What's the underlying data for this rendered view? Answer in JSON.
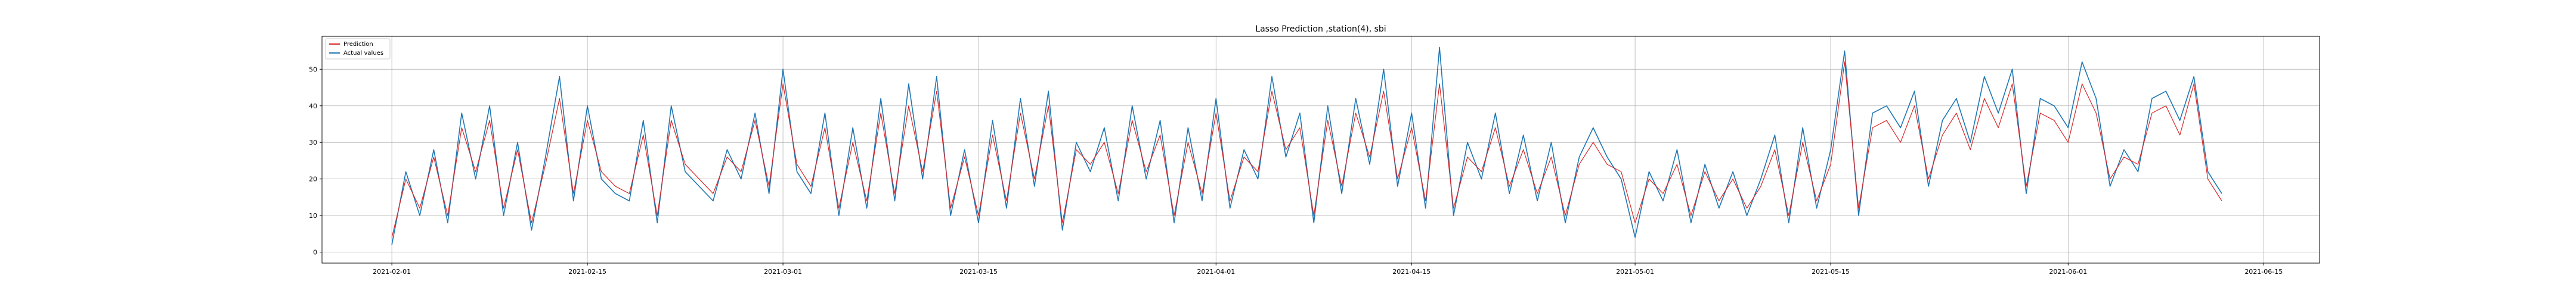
{
  "chart_data": {
    "type": "line",
    "title": "Lasso Prediction ,station(4), sbi",
    "xlabel": "",
    "ylabel": "",
    "x_range": [
      "2021-01-27",
      "2021-06-19"
    ],
    "x_ticks": [
      "2021-02-01",
      "2021-02-15",
      "2021-03-01",
      "2021-03-15",
      "2021-04-01",
      "2021-04-15",
      "2021-05-01",
      "2021-05-15",
      "2021-06-01",
      "2021-06-15"
    ],
    "ylim": [
      -3,
      59
    ],
    "y_ticks": [
      0,
      10,
      20,
      30,
      40,
      50
    ],
    "grid": true,
    "legend_position": "top-left",
    "series": [
      {
        "name": "Prediction",
        "color": "#d62728",
        "x": [
          "2021-02-01",
          "2021-02-02",
          "2021-02-03",
          "2021-02-04",
          "2021-02-05",
          "2021-02-06",
          "2021-02-07",
          "2021-02-08",
          "2021-02-09",
          "2021-02-10",
          "2021-02-11",
          "2021-02-12",
          "2021-02-13",
          "2021-02-14",
          "2021-02-15",
          "2021-02-16",
          "2021-02-17",
          "2021-02-18",
          "2021-02-19",
          "2021-02-20",
          "2021-02-21",
          "2021-02-22",
          "2021-02-23",
          "2021-02-24",
          "2021-02-25",
          "2021-02-26",
          "2021-02-27",
          "2021-02-28",
          "2021-03-01",
          "2021-03-02",
          "2021-03-03",
          "2021-03-04",
          "2021-03-05",
          "2021-03-06",
          "2021-03-07",
          "2021-03-08",
          "2021-03-09",
          "2021-03-10",
          "2021-03-11",
          "2021-03-12",
          "2021-03-13",
          "2021-03-14",
          "2021-03-15",
          "2021-03-16",
          "2021-03-17",
          "2021-03-18",
          "2021-03-19",
          "2021-03-20",
          "2021-03-21",
          "2021-03-22",
          "2021-03-23",
          "2021-03-24",
          "2021-03-25",
          "2021-03-26",
          "2021-03-27",
          "2021-03-28",
          "2021-03-29",
          "2021-03-30",
          "2021-03-31",
          "2021-04-01",
          "2021-04-02",
          "2021-04-03",
          "2021-04-04",
          "2021-04-05",
          "2021-04-06",
          "2021-04-07",
          "2021-04-08",
          "2021-04-09",
          "2021-04-10",
          "2021-04-11",
          "2021-04-12",
          "2021-04-13",
          "2021-04-14",
          "2021-04-15",
          "2021-04-16",
          "2021-04-17",
          "2021-04-18",
          "2021-04-19",
          "2021-04-20",
          "2021-04-21",
          "2021-04-22",
          "2021-04-23",
          "2021-04-24",
          "2021-04-25",
          "2021-04-26",
          "2021-04-27",
          "2021-04-28",
          "2021-04-29",
          "2021-04-30",
          "2021-05-01",
          "2021-05-02",
          "2021-05-03",
          "2021-05-04",
          "2021-05-05",
          "2021-05-06",
          "2021-05-07",
          "2021-05-08",
          "2021-05-09",
          "2021-05-10",
          "2021-05-11",
          "2021-05-12",
          "2021-05-13",
          "2021-05-14",
          "2021-05-15",
          "2021-05-16",
          "2021-05-17",
          "2021-05-18",
          "2021-05-19",
          "2021-05-20",
          "2021-05-21",
          "2021-05-22",
          "2021-05-23",
          "2021-05-24",
          "2021-05-25",
          "2021-05-26",
          "2021-05-27",
          "2021-05-28",
          "2021-05-29",
          "2021-05-30",
          "2021-05-31",
          "2021-06-01",
          "2021-06-02",
          "2021-06-03",
          "2021-06-04",
          "2021-06-05",
          "2021-06-06",
          "2021-06-07",
          "2021-06-08",
          "2021-06-09",
          "2021-06-10",
          "2021-06-11",
          "2021-06-12"
        ],
        "values": [
          4,
          20,
          12,
          26,
          10,
          34,
          22,
          36,
          12,
          28,
          8,
          24,
          42,
          16,
          36,
          22,
          18,
          16,
          32,
          10,
          36,
          24,
          20,
          16,
          26,
          22,
          36,
          18,
          46,
          24,
          18,
          34,
          12,
          30,
          14,
          38,
          16,
          40,
          22,
          44,
          12,
          26,
          10,
          32,
          14,
          38,
          20,
          40,
          8,
          28,
          24,
          30,
          16,
          36,
          22,
          32,
          10,
          30,
          16,
          38,
          14,
          26,
          22,
          44,
          28,
          34,
          10,
          36,
          18,
          38,
          26,
          44,
          20,
          34,
          14,
          46,
          12,
          26,
          22,
          34,
          18,
          28,
          16,
          26,
          10,
          24,
          30,
          24,
          22,
          8,
          20,
          16,
          24,
          10,
          22,
          14,
          20,
          12,
          18,
          28,
          10,
          30,
          14,
          24,
          52,
          12,
          34,
          36,
          30,
          40,
          20,
          32,
          38,
          28,
          42,
          34,
          46,
          18,
          38,
          36,
          30,
          46,
          38,
          20,
          26,
          24,
          38,
          40,
          32,
          46,
          20,
          14
        ]
      },
      {
        "name": "Actual values",
        "color": "#1f77b4",
        "x": [
          "2021-02-01",
          "2021-02-02",
          "2021-02-03",
          "2021-02-04",
          "2021-02-05",
          "2021-02-06",
          "2021-02-07",
          "2021-02-08",
          "2021-02-09",
          "2021-02-10",
          "2021-02-11",
          "2021-02-12",
          "2021-02-13",
          "2021-02-14",
          "2021-02-15",
          "2021-02-16",
          "2021-02-17",
          "2021-02-18",
          "2021-02-19",
          "2021-02-20",
          "2021-02-21",
          "2021-02-22",
          "2021-02-23",
          "2021-02-24",
          "2021-02-25",
          "2021-02-26",
          "2021-02-27",
          "2021-02-28",
          "2021-03-01",
          "2021-03-02",
          "2021-03-03",
          "2021-03-04",
          "2021-03-05",
          "2021-03-06",
          "2021-03-07",
          "2021-03-08",
          "2021-03-09",
          "2021-03-10",
          "2021-03-11",
          "2021-03-12",
          "2021-03-13",
          "2021-03-14",
          "2021-03-15",
          "2021-03-16",
          "2021-03-17",
          "2021-03-18",
          "2021-03-19",
          "2021-03-20",
          "2021-03-21",
          "2021-03-22",
          "2021-03-23",
          "2021-03-24",
          "2021-03-25",
          "2021-03-26",
          "2021-03-27",
          "2021-03-28",
          "2021-03-29",
          "2021-03-30",
          "2021-03-31",
          "2021-04-01",
          "2021-04-02",
          "2021-04-03",
          "2021-04-04",
          "2021-04-05",
          "2021-04-06",
          "2021-04-07",
          "2021-04-08",
          "2021-04-09",
          "2021-04-10",
          "2021-04-11",
          "2021-04-12",
          "2021-04-13",
          "2021-04-14",
          "2021-04-15",
          "2021-04-16",
          "2021-04-17",
          "2021-04-18",
          "2021-04-19",
          "2021-04-20",
          "2021-04-21",
          "2021-04-22",
          "2021-04-23",
          "2021-04-24",
          "2021-04-25",
          "2021-04-26",
          "2021-04-27",
          "2021-04-28",
          "2021-04-29",
          "2021-04-30",
          "2021-05-01",
          "2021-05-02",
          "2021-05-03",
          "2021-05-04",
          "2021-05-05",
          "2021-05-06",
          "2021-05-07",
          "2021-05-08",
          "2021-05-09",
          "2021-05-10",
          "2021-05-11",
          "2021-05-12",
          "2021-05-13",
          "2021-05-14",
          "2021-05-15",
          "2021-05-16",
          "2021-05-17",
          "2021-05-18",
          "2021-05-19",
          "2021-05-20",
          "2021-05-21",
          "2021-05-22",
          "2021-05-23",
          "2021-05-24",
          "2021-05-25",
          "2021-05-26",
          "2021-05-27",
          "2021-05-28",
          "2021-05-29",
          "2021-05-30",
          "2021-05-31",
          "2021-06-01",
          "2021-06-02",
          "2021-06-03",
          "2021-06-04",
          "2021-06-05",
          "2021-06-06",
          "2021-06-07",
          "2021-06-08",
          "2021-06-09",
          "2021-06-10",
          "2021-06-11",
          "2021-06-12"
        ],
        "values": [
          2,
          22,
          10,
          28,
          8,
          38,
          20,
          40,
          10,
          30,
          6,
          26,
          48,
          14,
          40,
          20,
          16,
          14,
          36,
          8,
          40,
          22,
          18,
          14,
          28,
          20,
          38,
          16,
          50,
          22,
          16,
          38,
          10,
          34,
          12,
          42,
          14,
          46,
          20,
          48,
          10,
          28,
          8,
          36,
          12,
          42,
          18,
          44,
          6,
          30,
          22,
          34,
          14,
          40,
          20,
          36,
          8,
          34,
          14,
          42,
          12,
          28,
          20,
          48,
          26,
          38,
          8,
          40,
          16,
          42,
          24,
          50,
          18,
          38,
          12,
          56,
          10,
          30,
          20,
          38,
          16,
          32,
          14,
          30,
          8,
          26,
          34,
          26,
          20,
          4,
          22,
          14,
          28,
          8,
          24,
          12,
          22,
          10,
          20,
          32,
          8,
          34,
          12,
          28,
          55,
          10,
          38,
          40,
          34,
          44,
          18,
          36,
          42,
          30,
          48,
          38,
          50,
          16,
          42,
          40,
          34,
          52,
          42,
          18,
          28,
          22,
          42,
          44,
          36,
          48,
          22,
          16
        ]
      }
    ]
  }
}
